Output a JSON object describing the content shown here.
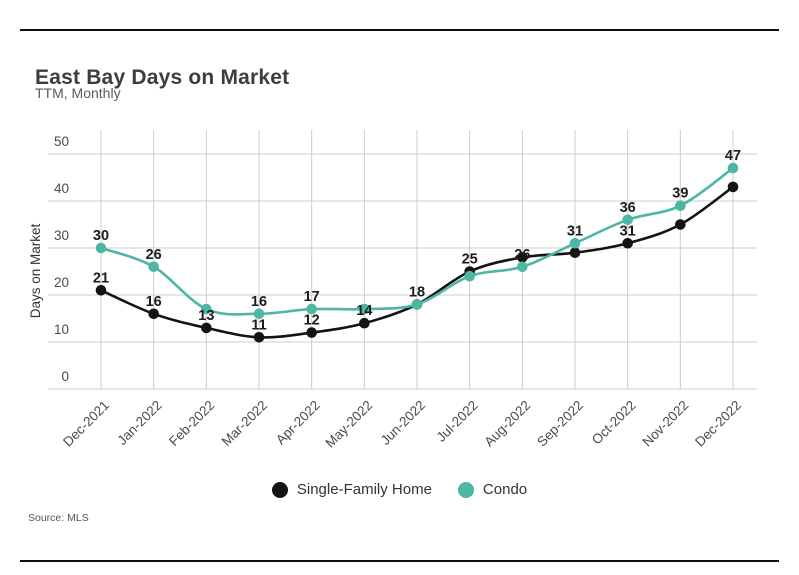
{
  "chart_data": {
    "type": "line",
    "title": "East Bay Days on Market",
    "subtitle": "TTM, Monthly",
    "ylabel": "Days on Market",
    "xlabel": "",
    "ylim": [
      0,
      50
    ],
    "yticks": [
      0,
      10,
      20,
      30,
      40,
      50
    ],
    "grid": true,
    "legend_position": "bottom",
    "categories": [
      "Dec-2021",
      "Jan-2022",
      "Feb-2022",
      "Mar-2022",
      "Apr-2022",
      "May-2022",
      "Jun-2022",
      "Jul-2022",
      "Aug-2022",
      "Sep-2022",
      "Oct-2022",
      "Nov-2022",
      "Dec-2022"
    ],
    "series": [
      {
        "name": "Single-Family Home",
        "color": "#141414",
        "values": [
          21,
          16,
          13,
          11,
          12,
          14,
          18,
          25,
          28,
          29,
          31,
          35,
          43
        ],
        "point_labels": [
          "21",
          "16",
          "13",
          "11",
          "12",
          "14",
          "18",
          "25",
          null,
          null,
          "31",
          null,
          null
        ]
      },
      {
        "name": "Condo",
        "color": "#4db6a4",
        "values": [
          30,
          26,
          17,
          16,
          17,
          17,
          18,
          24,
          26,
          31,
          36,
          39,
          47
        ],
        "point_labels": [
          "30",
          "26",
          null,
          "16",
          "17",
          null,
          null,
          null,
          "26",
          "31",
          "36",
          "39",
          "47"
        ]
      }
    ]
  },
  "footer": {
    "source": "Source: MLS"
  }
}
